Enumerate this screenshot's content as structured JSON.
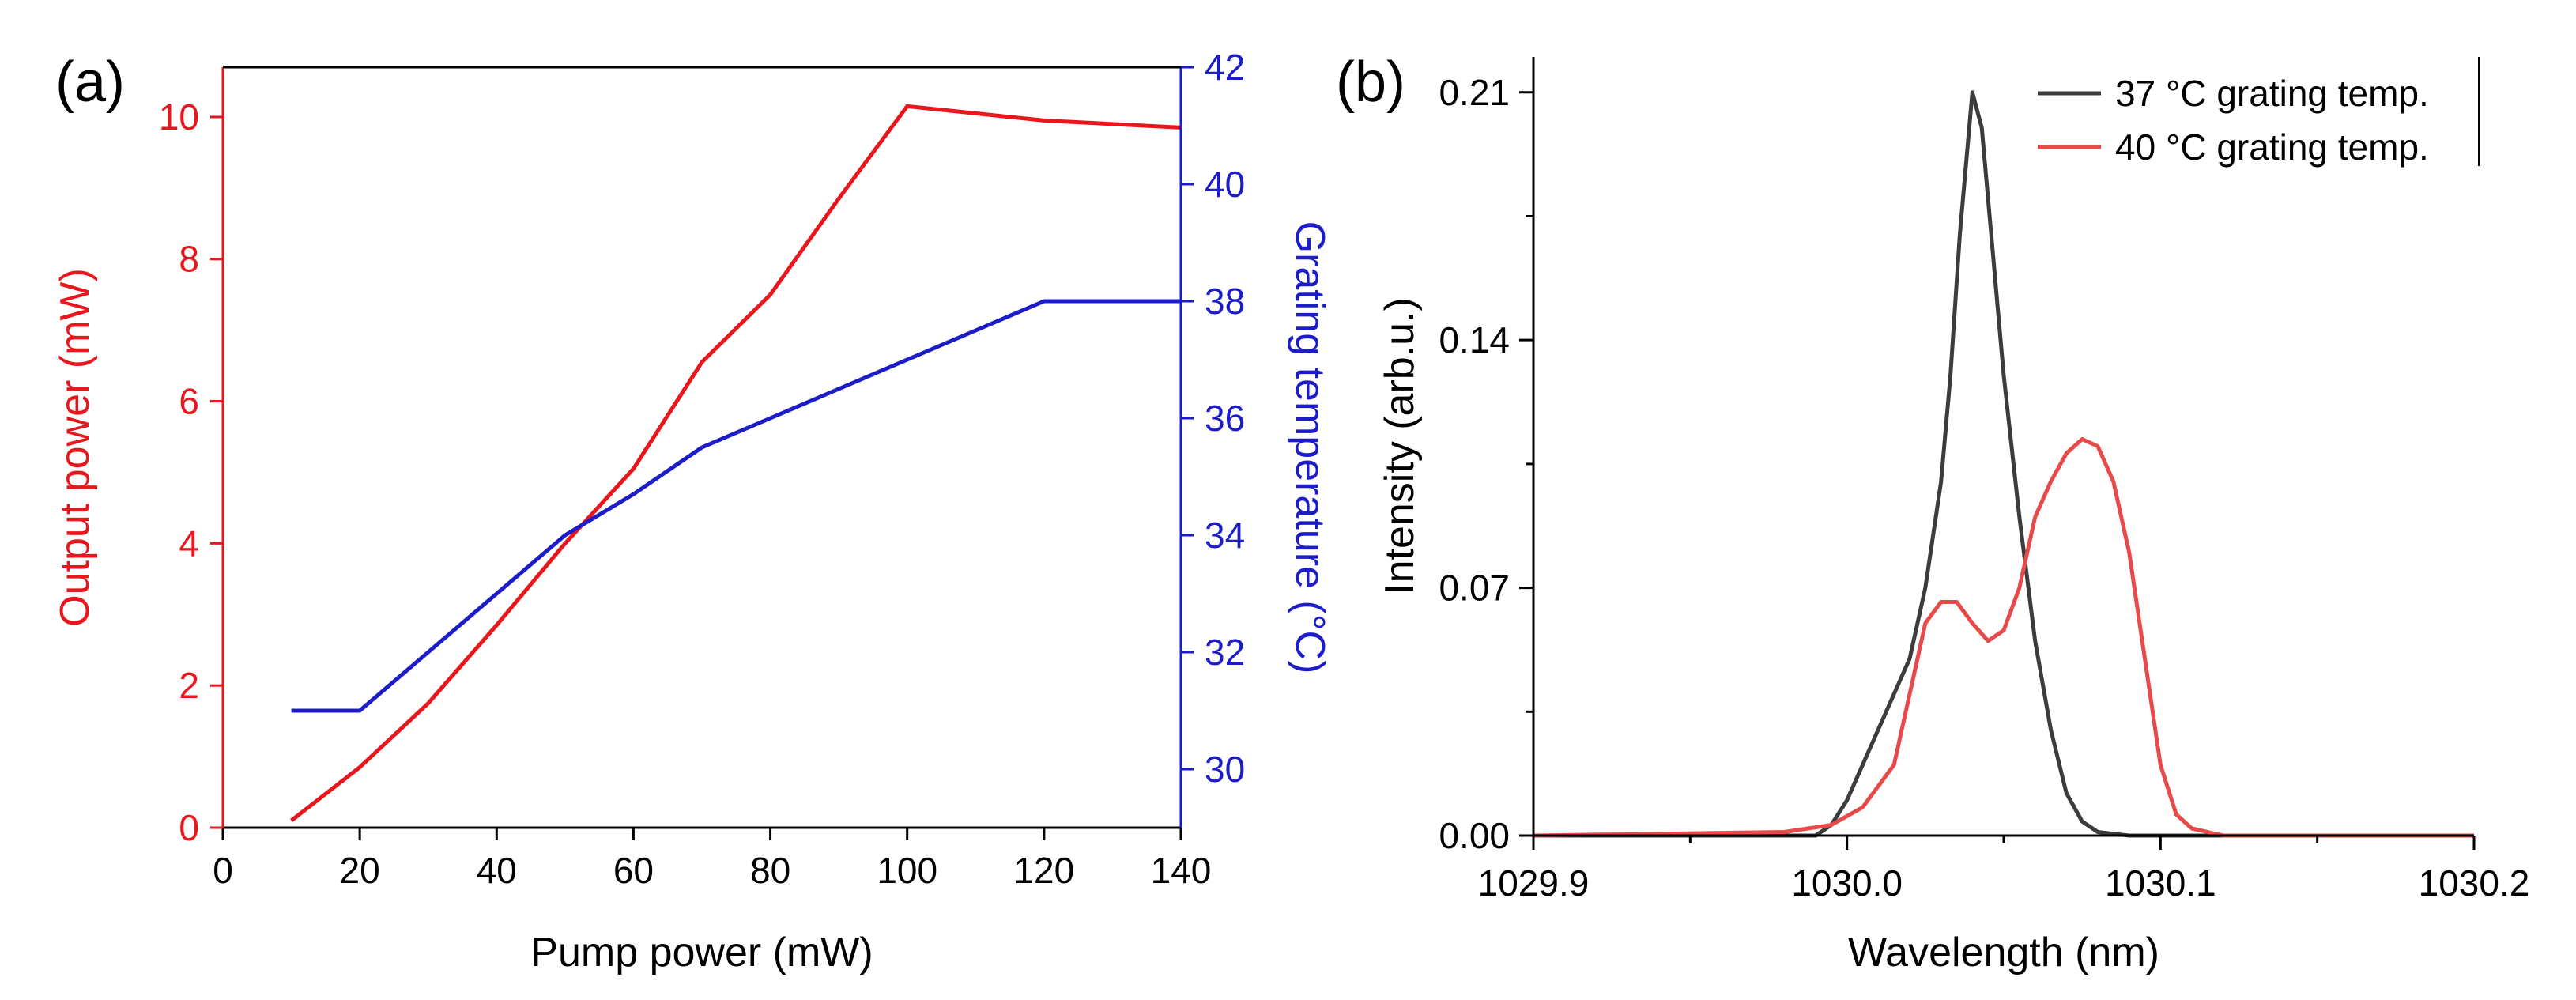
{
  "chart_data": [
    {
      "type": "line",
      "panel_label": "(a)",
      "title": "",
      "xlabel": "Pump power (mW)",
      "ylabel": "Output power (mW)",
      "y2label": "Grating temperature (°C)",
      "xlim": [
        0,
        140
      ],
      "ylim": [
        0,
        10.7
      ],
      "y2lim": [
        29,
        42
      ],
      "xticks": [
        0,
        20,
        40,
        60,
        80,
        100,
        120,
        140
      ],
      "yticks": [
        0,
        2,
        4,
        6,
        8,
        10
      ],
      "y2ticks": [
        30,
        32,
        34,
        36,
        38,
        40,
        42
      ],
      "grid": false,
      "series": [
        {
          "name": "Output power",
          "axis": "left",
          "color": "#e8171d",
          "x": [
            10,
            20,
            30,
            40,
            50,
            60,
            70,
            80,
            90,
            100,
            110,
            120,
            140
          ],
          "y": [
            0.1,
            0.85,
            1.75,
            2.85,
            4.0,
            5.05,
            6.55,
            7.5,
            8.85,
            10.15,
            10.05,
            9.95,
            9.85
          ]
        },
        {
          "name": "Grating temperature",
          "axis": "right",
          "color": "#1c1cc8",
          "x": [
            10,
            20,
            30,
            40,
            50,
            60,
            70,
            80,
            90,
            100,
            110,
            120,
            130,
            140
          ],
          "y": [
            31,
            31,
            32,
            33,
            34,
            34.7,
            35.5,
            36,
            36.5,
            37,
            37.5,
            38,
            38,
            38
          ]
        }
      ]
    },
    {
      "type": "line",
      "panel_label": "(b)",
      "title": "",
      "xlabel": "Wavelength (nm)",
      "ylabel": "Intensity (arb.u.)",
      "xlim": [
        1029.9,
        1030.2
      ],
      "ylim": [
        0,
        0.22
      ],
      "xticks": [
        1029.9,
        1030.0,
        1030.1,
        1030.2
      ],
      "xtick_labels": [
        "1029.9",
        "1030.0",
        "1030.1",
        "1030.2"
      ],
      "yticks": [
        0,
        0.07,
        0.14,
        0.21
      ],
      "ytick_labels": [
        "0.00",
        "0.07",
        "0.14",
        "0.21"
      ],
      "grid": false,
      "legend_position": "top-right",
      "series": [
        {
          "name": "37 °C grating temp.",
          "color": "#3c3c3c",
          "x": [
            1029.9,
            1029.99,
            1029.995,
            1030.0,
            1030.005,
            1030.01,
            1030.015,
            1030.02,
            1030.025,
            1030.03,
            1030.033,
            1030.036,
            1030.04,
            1030.043,
            1030.046,
            1030.05,
            1030.055,
            1030.06,
            1030.065,
            1030.07,
            1030.075,
            1030.08,
            1030.09,
            1030.1,
            1030.2
          ],
          "y": [
            0,
            0.0,
            0.003,
            0.01,
            0.02,
            0.03,
            0.04,
            0.05,
            0.07,
            0.1,
            0.13,
            0.17,
            0.21,
            0.2,
            0.17,
            0.13,
            0.09,
            0.055,
            0.03,
            0.012,
            0.004,
            0.001,
            0.0,
            0.0,
            0
          ]
        },
        {
          "name": "40 °C grating temp.",
          "color": "#e84a4a",
          "x": [
            1029.9,
            1029.98,
            1029.995,
            1030.005,
            1030.015,
            1030.02,
            1030.025,
            1030.03,
            1030.035,
            1030.04,
            1030.045,
            1030.05,
            1030.055,
            1030.06,
            1030.065,
            1030.07,
            1030.075,
            1030.08,
            1030.085,
            1030.09,
            1030.095,
            1030.1,
            1030.105,
            1030.11,
            1030.12,
            1030.2
          ],
          "y": [
            0,
            0.001,
            0.003,
            0.008,
            0.02,
            0.04,
            0.06,
            0.066,
            0.066,
            0.06,
            0.055,
            0.058,
            0.07,
            0.09,
            0.1,
            0.108,
            0.112,
            0.11,
            0.1,
            0.08,
            0.05,
            0.02,
            0.006,
            0.002,
            0.0,
            0
          ]
        }
      ]
    }
  ]
}
